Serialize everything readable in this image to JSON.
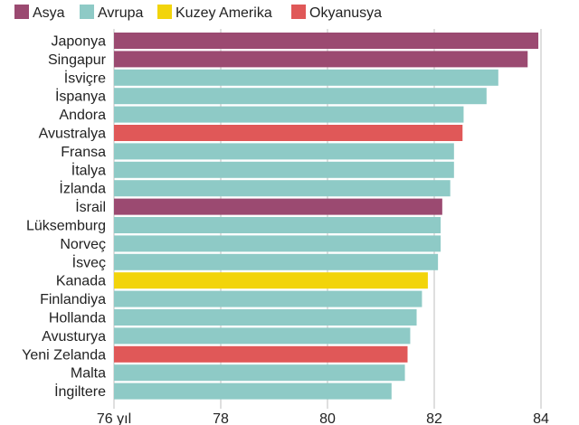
{
  "chart_data": {
    "type": "bar",
    "orientation": "horizontal",
    "title": "",
    "xlabel": "",
    "ylabel": "",
    "xlim": [
      76,
      84
    ],
    "xticks": [
      76,
      78,
      80,
      82,
      84
    ],
    "xtick_labels": [
      "76 yıl",
      "78",
      "80",
      "82",
      "84"
    ],
    "grid": true,
    "legend_position": "top-left",
    "legend": [
      {
        "name": "Asya",
        "color": "#9b4a71"
      },
      {
        "name": "Avrupa",
        "color": "#8ecac6"
      },
      {
        "name": "Kuzey Amerika",
        "color": "#f2d40b"
      },
      {
        "name": "Okyanusya",
        "color": "#e05858"
      }
    ],
    "categories": [
      "Japonya",
      "Singapur",
      "İsviçre",
      "İspanya",
      "Andora",
      "Avustralya",
      "Fransa",
      "İtalya",
      "İzlanda",
      "İsrail",
      "Lüksemburg",
      "Norveç",
      "İsveç",
      "Kanada",
      "Finlandiya",
      "Hollanda",
      "Avusturya",
      "Yeni Zelanda",
      "Malta",
      "İngiltere"
    ],
    "values": [
      83.95,
      83.75,
      83.2,
      82.98,
      82.55,
      82.53,
      82.37,
      82.37,
      82.3,
      82.15,
      82.12,
      82.12,
      82.07,
      81.88,
      81.77,
      81.67,
      81.55,
      81.5,
      81.45,
      81.2
    ],
    "groups": [
      "Asya",
      "Asya",
      "Avrupa",
      "Avrupa",
      "Avrupa",
      "Okyanusya",
      "Avrupa",
      "Avrupa",
      "Avrupa",
      "Asya",
      "Avrupa",
      "Avrupa",
      "Avrupa",
      "Kuzey Amerika",
      "Avrupa",
      "Avrupa",
      "Avrupa",
      "Okyanusya",
      "Avrupa",
      "Avrupa"
    ]
  }
}
